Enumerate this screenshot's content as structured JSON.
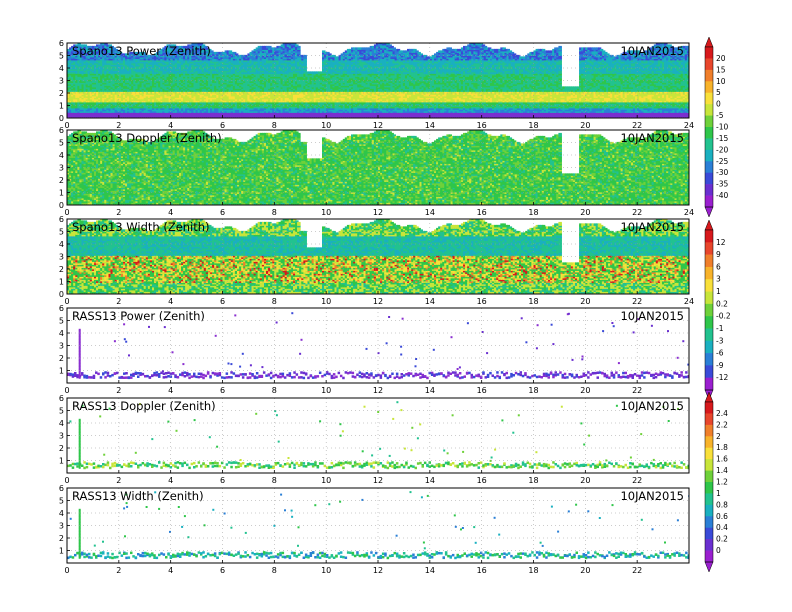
{
  "date": "10JAN2015",
  "chart_data": [
    {
      "type": "heatmap",
      "title": "Spano13 Power (Zenith)",
      "ylim": [
        0,
        6
      ],
      "xlim": [
        0,
        24
      ],
      "xticks": [
        "0",
        "2",
        "4",
        "6",
        "8",
        "10",
        "12",
        "14",
        "16",
        "18",
        "20",
        "22",
        "24"
      ],
      "yticks": [
        "0",
        "1",
        "2",
        "3",
        "4",
        "5",
        "6"
      ],
      "colorbar": 0,
      "style": "dense",
      "variant": "power"
    },
    {
      "type": "heatmap",
      "title": "Spano13 Doppler (Zenith)",
      "ylim": [
        0,
        6
      ],
      "xlim": [
        0,
        24
      ],
      "xticks": [
        "0",
        "2",
        "4",
        "6",
        "8",
        "10",
        "12",
        "14",
        "16",
        "18",
        "20",
        "22",
        "24"
      ],
      "yticks": [
        "0",
        "1",
        "2",
        "3",
        "4",
        "5",
        "6"
      ],
      "colorbar": 0,
      "style": "dense",
      "variant": "doppler"
    },
    {
      "type": "heatmap",
      "title": "Spano13 Width (Zenith)",
      "ylim": [
        0,
        6
      ],
      "xlim": [
        0,
        24
      ],
      "xticks": [
        "0",
        "2",
        "4",
        "6",
        "8",
        "10",
        "12",
        "14",
        "16",
        "18",
        "20",
        "22",
        "24"
      ],
      "yticks": [
        "0",
        "1",
        "2",
        "3",
        "4",
        "5",
        "6"
      ],
      "colorbar": 1,
      "style": "dense",
      "variant": "width"
    },
    {
      "type": "scatter",
      "title": "RASS13 Power (Zenith)",
      "ylim": [
        0,
        6
      ],
      "xlim": [
        0,
        24
      ],
      "xticks": [
        "0",
        "2",
        "4",
        "6",
        "8",
        "10",
        "12",
        "14",
        "16",
        "18",
        "20",
        "22"
      ],
      "yticks": [
        "1",
        "2",
        "3",
        "4",
        "5",
        "6"
      ],
      "colorbar": 1,
      "style": "sparse",
      "variant": "rpower"
    },
    {
      "type": "scatter",
      "title": "RASS13 Doppler (Zenith)",
      "ylim": [
        0,
        6
      ],
      "xlim": [
        0,
        24
      ],
      "xticks": [
        "0",
        "2",
        "4",
        "6",
        "8",
        "10",
        "12",
        "14",
        "16",
        "18",
        "20",
        "22"
      ],
      "yticks": [
        "1",
        "2",
        "3",
        "4",
        "5",
        "6"
      ],
      "colorbar": 2,
      "style": "sparse",
      "variant": "rdoppler"
    },
    {
      "type": "scatter",
      "title": "RASS13 Width (Zenith)",
      "ylim": [
        0,
        6
      ],
      "xlim": [
        0,
        24
      ],
      "xticks": [
        "0",
        "2",
        "4",
        "6",
        "8",
        "10",
        "12",
        "14",
        "16",
        "18",
        "20",
        "22"
      ],
      "yticks": [
        "1",
        "2",
        "3",
        "4",
        "5",
        "6"
      ],
      "colorbar": 2,
      "style": "sparse",
      "variant": "rwidth"
    }
  ],
  "colorbars": [
    {
      "labels": [
        "20",
        "15",
        "10",
        "5",
        "0",
        "-5",
        "-10",
        "-15",
        "-20",
        "-25",
        "-30",
        "-35",
        "-40"
      ],
      "colors": [
        "#d7191c",
        "#e8462c",
        "#f07f2b",
        "#f8b32b",
        "#f9e03a",
        "#c8e53a",
        "#6fd13a",
        "#2fc64a",
        "#22c28f",
        "#1ab0c0",
        "#2a7fd6",
        "#3a4ad8",
        "#6a2fd0",
        "#9a1fcf"
      ]
    },
    {
      "labels": [
        "12",
        "9",
        "6",
        "3",
        "1",
        "0.2",
        "-0.2",
        "-1",
        "-3",
        "-6",
        "-9",
        "-12"
      ],
      "colors": [
        "#d7191c",
        "#e8462c",
        "#f07f2b",
        "#f8b32b",
        "#f9e03a",
        "#c8e53a",
        "#6fd13a",
        "#2fc64a",
        "#22c28f",
        "#1ab0c0",
        "#2a7fd6",
        "#3a4ad8",
        "#9a1fcf"
      ]
    },
    {
      "labels": [
        "2.4",
        "2.2",
        "2",
        "1.8",
        "1.6",
        "1.4",
        "1.2",
        "1",
        "0.8",
        "0.6",
        "0.4",
        "0.2",
        "0"
      ],
      "colors": [
        "#d7191c",
        "#e8462c",
        "#f07f2b",
        "#f8b32b",
        "#f9e03a",
        "#c8e53a",
        "#6fd13a",
        "#2fc64a",
        "#22c28f",
        "#1ab0c0",
        "#2a7fd6",
        "#3a4ad8",
        "#6a2fd0",
        "#9a1fcf"
      ]
    }
  ]
}
